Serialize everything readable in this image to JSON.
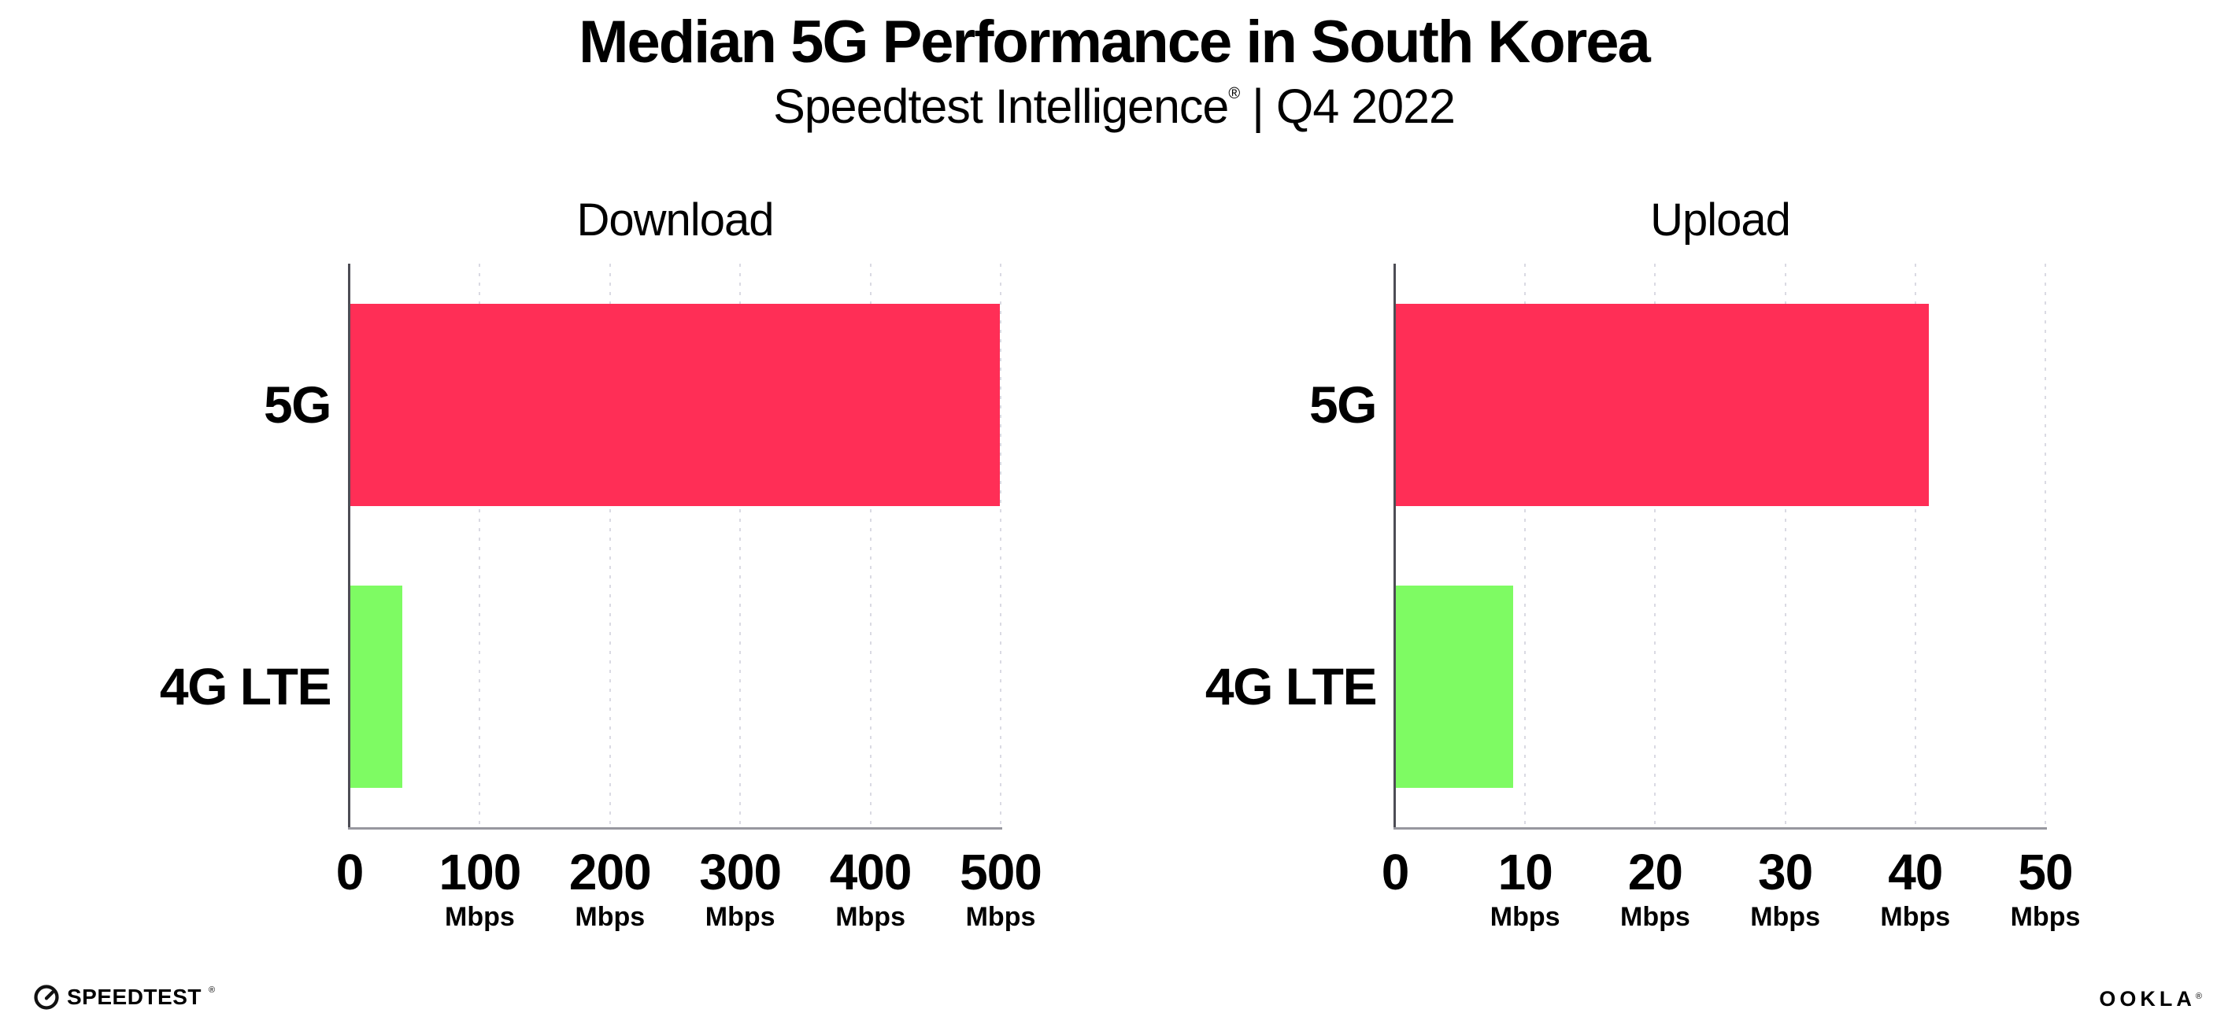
{
  "header": {
    "title": "Median 5G Performance in South Korea",
    "subtitle": {
      "brand": "Speedtest Intelligence",
      "reg": "®",
      "rest": " | Q4 2022"
    }
  },
  "footer": {
    "speedtest_label": "SPEEDTEST",
    "speedtest_reg": "®",
    "ookla_label": "OOKLA",
    "ookla_reg": "®"
  },
  "colors": {
    "background": "#ffffff",
    "bar_5g": "#FF2E56",
    "bar_4g_lte": "#7EFB63",
    "axis_x_line": "#97979f",
    "axis_y_line": "#4d4d55",
    "gridline": "#dadae3",
    "text": "#000000"
  },
  "chart_data": [
    {
      "type": "bar",
      "orientation": "horizontal",
      "title": "Download",
      "categories": [
        "5G",
        "4G LTE"
      ],
      "values": [
        499,
        40
      ],
      "unit": "Mbps",
      "xlim": [
        0,
        500
      ],
      "xticks": [
        0,
        100,
        200,
        300,
        400,
        500
      ],
      "grid": "vertical-dotted",
      "legend": "none"
    },
    {
      "type": "bar",
      "orientation": "horizontal",
      "title": "Upload",
      "categories": [
        "5G",
        "4G LTE"
      ],
      "values": [
        41,
        9
      ],
      "unit": "Mbps",
      "xlim": [
        0,
        50
      ],
      "xticks": [
        0,
        10,
        20,
        30,
        40,
        50
      ],
      "grid": "vertical-dotted",
      "legend": "none"
    }
  ]
}
